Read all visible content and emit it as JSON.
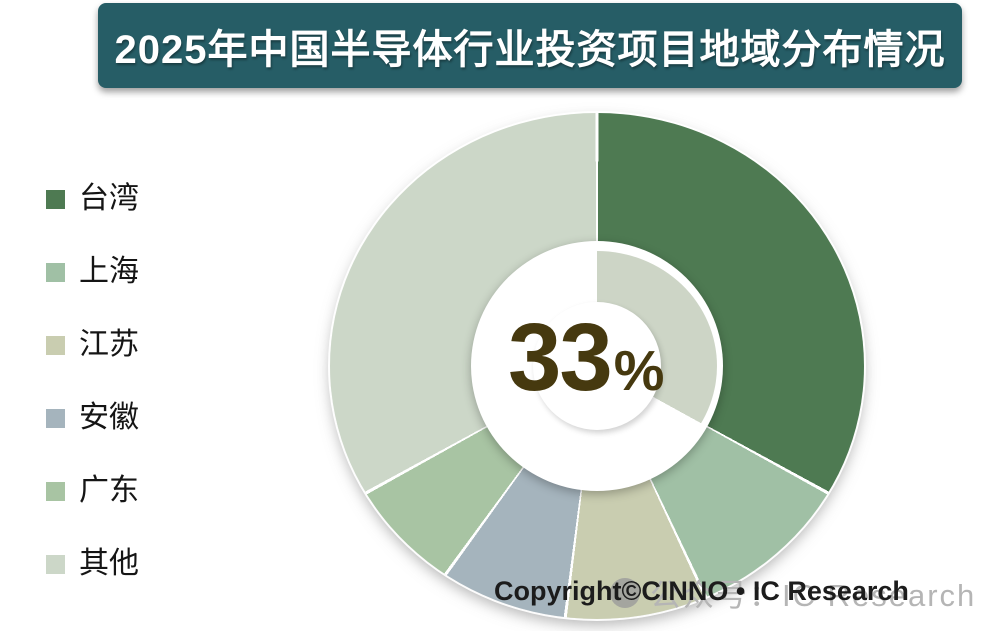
{
  "page": {
    "background": "#ffffff"
  },
  "header": {
    "title": "2025年中国半导体行业投资项目地域分布情况",
    "bg_color": "#265d66",
    "text_color": "#ffffff"
  },
  "legend": {
    "items": [
      {
        "label": "台湾"
      },
      {
        "label": "上海"
      },
      {
        "label": "江苏"
      },
      {
        "label": "安徽"
      },
      {
        "label": "广东"
      },
      {
        "label": "其他"
      }
    ]
  },
  "chart_data": {
    "type": "pie",
    "subtype": "donut",
    "title": "2025年中国半导体行业投资项目地域分布情况",
    "categories": [
      "台湾",
      "上海",
      "江苏",
      "安徽",
      "广东",
      "其他"
    ],
    "values": [
      33,
      10,
      9,
      8,
      7,
      33
    ],
    "unit": "%",
    "colors": [
      "#4e7a52",
      "#a0c0a5",
      "#c9cdb0",
      "#a5b4bd",
      "#a8c4a3",
      "#ccd7c8"
    ],
    "start_angle_deg": 0,
    "direction": "clockwise",
    "legend_position": "left",
    "center_label": {
      "value": "33",
      "suffix": "%",
      "color": "#46390f"
    },
    "inner_ring": {
      "value": 33,
      "color": "#cdd5c6"
    },
    "divider_color": "#ffffff"
  },
  "footer": {
    "copyright": "Copyright©CINNO • IC Research",
    "watermark": "公众号：IC Research",
    "watermark_color": "#b5b5b5"
  }
}
